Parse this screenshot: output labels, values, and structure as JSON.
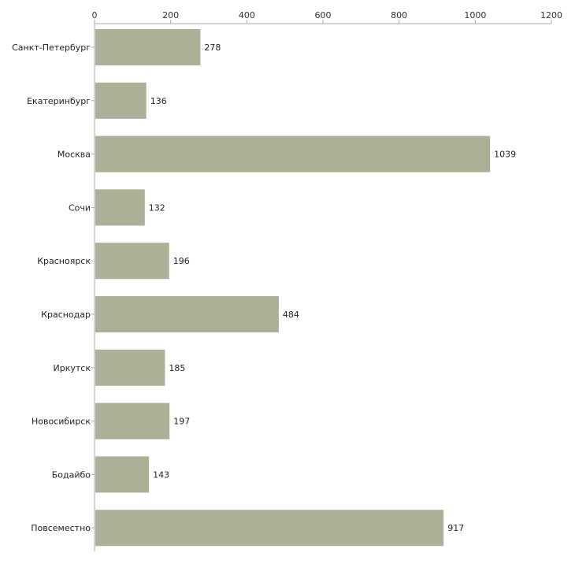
{
  "chart_data": {
    "type": "bar",
    "orientation": "horizontal",
    "title": "",
    "xlabel": "",
    "ylabel": "",
    "categories": [
      "Санкт-Петербург",
      "Екатеринбург",
      "Москва",
      "Сочи",
      "Красноярск",
      "Краснодар",
      "Иркутск",
      "Новосибирск",
      "Бодайбо",
      "Повсеместно"
    ],
    "values": [
      278,
      136,
      1039,
      132,
      196,
      484,
      185,
      197,
      143,
      917
    ],
    "xlim": [
      0,
      1200
    ],
    "xticks": [
      0,
      200,
      400,
      600,
      800,
      1000,
      1200
    ],
    "axis_position": "top",
    "grid": false,
    "legend": "none",
    "colors": {
      "bar": "#abb096",
      "axis": "#aaaaaa"
    }
  }
}
